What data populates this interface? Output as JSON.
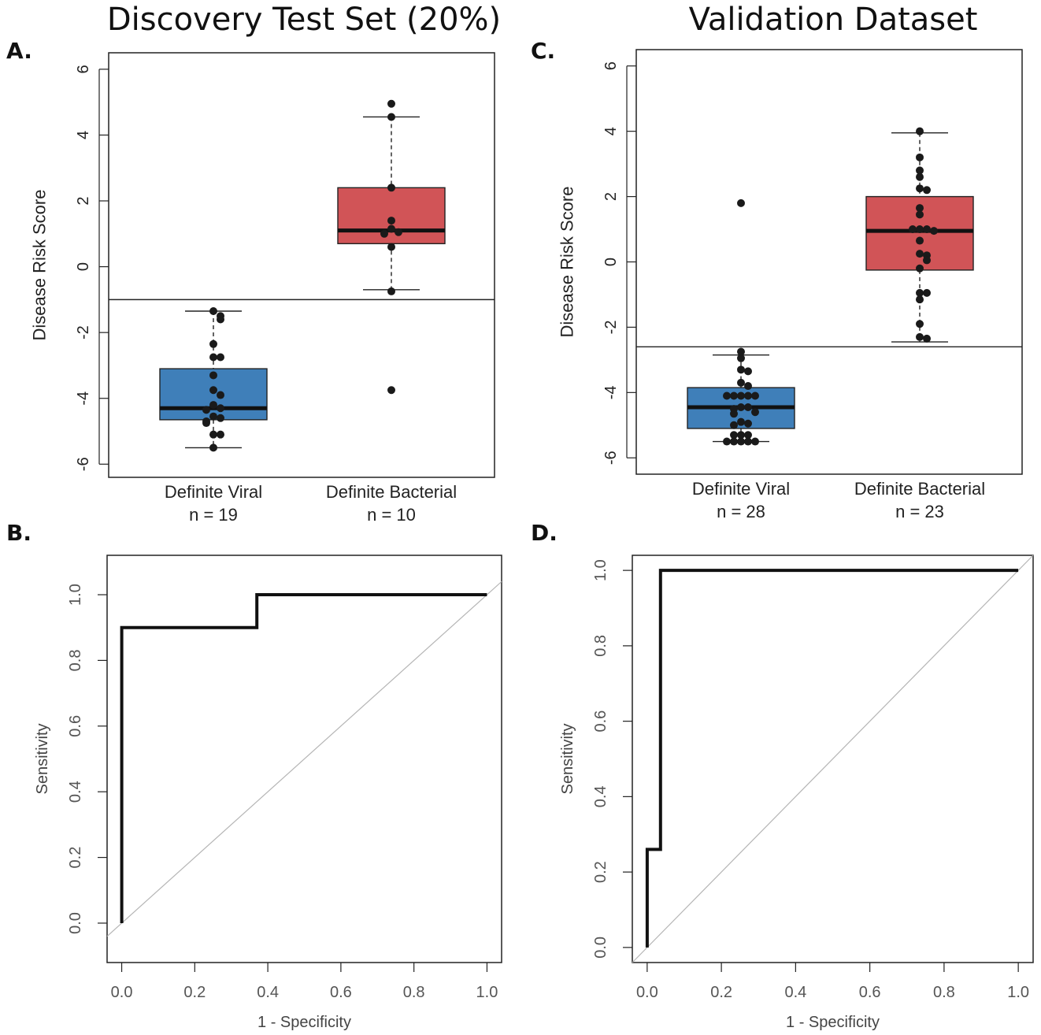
{
  "chart_data": [
    {
      "panel": "A.",
      "type": "box",
      "title": "Discovery Test Set (20%)",
      "ylabel": "Disease Risk Score",
      "ylim": [
        -6.4,
        6.5
      ],
      "yticks": [
        6,
        4,
        2,
        0,
        -2,
        -4,
        -6
      ],
      "threshold": -1.0,
      "categories": [
        {
          "name": "Definite Viral",
          "n_label": "n = 19",
          "color": "#3f7fb9",
          "box": {
            "q1": -4.65,
            "median": -4.3,
            "q3": -3.1,
            "whisker_low": -5.5,
            "whisker_high": -1.35
          },
          "points": [
            -1.35,
            -1.5,
            -1.6,
            -2.35,
            -2.75,
            -2.75,
            -3.3,
            -3.75,
            -3.9,
            -4.2,
            -4.3,
            -4.35,
            -4.55,
            -4.6,
            -4.7,
            -4.75,
            -5.1,
            -5.1,
            -5.5
          ]
        },
        {
          "name": "Definite Bacterial",
          "n_label": "n = 10",
          "color": "#d15457",
          "box": {
            "q1": 0.7,
            "median": 1.1,
            "q3": 2.4,
            "whisker_low": -0.7,
            "whisker_high": 4.55
          },
          "points": [
            4.95,
            4.55,
            2.4,
            1.4,
            1.15,
            1.05,
            1.0,
            0.6,
            -0.75,
            -3.75
          ]
        }
      ]
    },
    {
      "panel": "C.",
      "type": "box",
      "title": "Validation Dataset",
      "ylabel": "Disease Risk Score",
      "ylim": [
        -6.5,
        6.5
      ],
      "yticks": [
        6,
        4,
        2,
        0,
        -2,
        -4,
        -6
      ],
      "threshold": -2.6,
      "categories": [
        {
          "name": "Definite Viral",
          "n_label": "n = 28",
          "color": "#3f7fb9",
          "box": {
            "q1": -5.1,
            "median": -4.45,
            "q3": -3.85,
            "whisker_low": -5.5,
            "whisker_high": -2.85
          },
          "points": [
            1.8,
            -2.75,
            -2.95,
            -3.3,
            -3.35,
            -3.7,
            -3.8,
            -4.1,
            -4.1,
            -4.1,
            -4.1,
            -4.1,
            -4.45,
            -4.45,
            -4.5,
            -4.6,
            -4.65,
            -4.9,
            -4.95,
            -5.0,
            -5.3,
            -5.3,
            -5.3,
            -5.5,
            -5.5,
            -5.5,
            -5.5,
            -5.5
          ]
        },
        {
          "name": "Definite Bacterial",
          "n_label": "n = 23",
          "color": "#d15457",
          "box": {
            "q1": -0.25,
            "median": 0.95,
            "q3": 2.0,
            "whisker_low": -2.45,
            "whisker_high": 3.95
          },
          "points": [
            4.0,
            3.2,
            2.8,
            2.6,
            2.25,
            2.2,
            1.65,
            1.45,
            1.0,
            1.0,
            1.0,
            0.95,
            0.65,
            0.25,
            0.2,
            0.05,
            -0.2,
            -0.95,
            -0.95,
            -1.15,
            -1.9,
            -2.3,
            -2.35
          ]
        }
      ]
    },
    {
      "panel": "B.",
      "type": "line",
      "xlabel": "1 - Specificity",
      "ylabel": "Sensitivity",
      "xlim": [
        -0.04,
        1.04
      ],
      "ylim": [
        -0.12,
        1.12
      ],
      "xticks": [
        0.0,
        0.2,
        0.4,
        0.6,
        0.8,
        1.0
      ],
      "yticks": [
        0.0,
        0.2,
        0.4,
        0.6,
        0.8,
        1.0
      ],
      "tick_labels": [
        "0.0",
        "0.2",
        "0.4",
        "0.6",
        "0.8",
        "1.0"
      ],
      "roc": [
        [
          0.0,
          0.0
        ],
        [
          0.0,
          0.9
        ],
        [
          0.37,
          0.9
        ],
        [
          0.37,
          1.0
        ],
        [
          1.0,
          1.0
        ]
      ]
    },
    {
      "panel": "D.",
      "type": "line",
      "xlabel": "1 - Specificity",
      "ylabel": "Sensitivity",
      "xlim": [
        -0.04,
        1.04
      ],
      "ylim": [
        -0.04,
        1.04
      ],
      "xticks": [
        0.0,
        0.2,
        0.4,
        0.6,
        0.8,
        1.0
      ],
      "yticks": [
        0.0,
        0.2,
        0.4,
        0.6,
        0.8,
        1.0
      ],
      "tick_labels": [
        "0.0",
        "0.2",
        "0.4",
        "0.6",
        "0.8",
        "1.0"
      ],
      "roc": [
        [
          0.0,
          0.0
        ],
        [
          0.0,
          0.26
        ],
        [
          0.036,
          0.26
        ],
        [
          0.036,
          1.0
        ],
        [
          1.0,
          1.0
        ]
      ]
    }
  ]
}
